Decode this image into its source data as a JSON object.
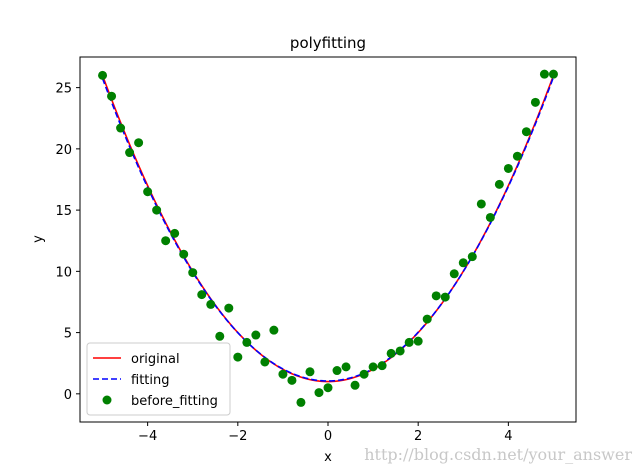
{
  "chart_data": {
    "type": "line",
    "title": "polyfitting",
    "xlabel": "x",
    "ylabel": "y",
    "xlim": [
      -5.5,
      5.5
    ],
    "ylim": [
      -2.3,
      27.5
    ],
    "xticks": [
      -4,
      -2,
      0,
      2,
      4
    ],
    "yticks": [
      0,
      5,
      10,
      15,
      20,
      25
    ],
    "grid": false,
    "legend_position": "lower left",
    "series": [
      {
        "name": "original",
        "kind": "line",
        "style": "solid",
        "color": "#ff0000",
        "formula": "y = x^2 + 1",
        "x_range": [
          -5,
          5
        ]
      },
      {
        "name": "fitting",
        "kind": "line",
        "style": "dashed",
        "color": "#0000ff",
        "formula": "y = 0.99*x^2 + 0.01*x + 1.05",
        "x_range": [
          -5,
          5
        ]
      },
      {
        "name": "before_fitting",
        "kind": "scatter",
        "color": "#008000",
        "x": [
          -5.0,
          -4.8,
          -4.6,
          -4.4,
          -4.2,
          -4.0,
          -3.8,
          -3.6,
          -3.4,
          -3.2,
          -3.0,
          -2.8,
          -2.6,
          -2.4,
          -2.2,
          -2.0,
          -1.8,
          -1.6,
          -1.4,
          -1.2,
          -1.0,
          -0.8,
          -0.6,
          -0.4,
          -0.2,
          0.0,
          0.2,
          0.4,
          0.6,
          0.8,
          1.0,
          1.2,
          1.4,
          1.6,
          1.8,
          2.0,
          2.2,
          2.4,
          2.6,
          2.8,
          3.0,
          3.2,
          3.4,
          3.6,
          3.8,
          4.0,
          4.2,
          4.4,
          4.6,
          4.8,
          5.0
        ],
        "y": [
          26.0,
          24.3,
          21.7,
          19.7,
          20.5,
          16.5,
          15.0,
          12.5,
          13.1,
          11.4,
          9.9,
          8.1,
          7.3,
          4.7,
          7.0,
          3.0,
          4.2,
          4.8,
          2.6,
          5.2,
          1.6,
          1.1,
          -0.7,
          1.8,
          0.1,
          0.5,
          1.9,
          2.2,
          0.7,
          1.6,
          2.2,
          2.3,
          3.3,
          3.5,
          4.2,
          4.3,
          6.1,
          8.0,
          7.9,
          9.8,
          10.7,
          11.2,
          15.5,
          14.4,
          17.1,
          18.4,
          19.4,
          21.4,
          23.8,
          26.1,
          26.1
        ]
      }
    ]
  },
  "watermark": "http://blog.csdn.net/your_answer"
}
